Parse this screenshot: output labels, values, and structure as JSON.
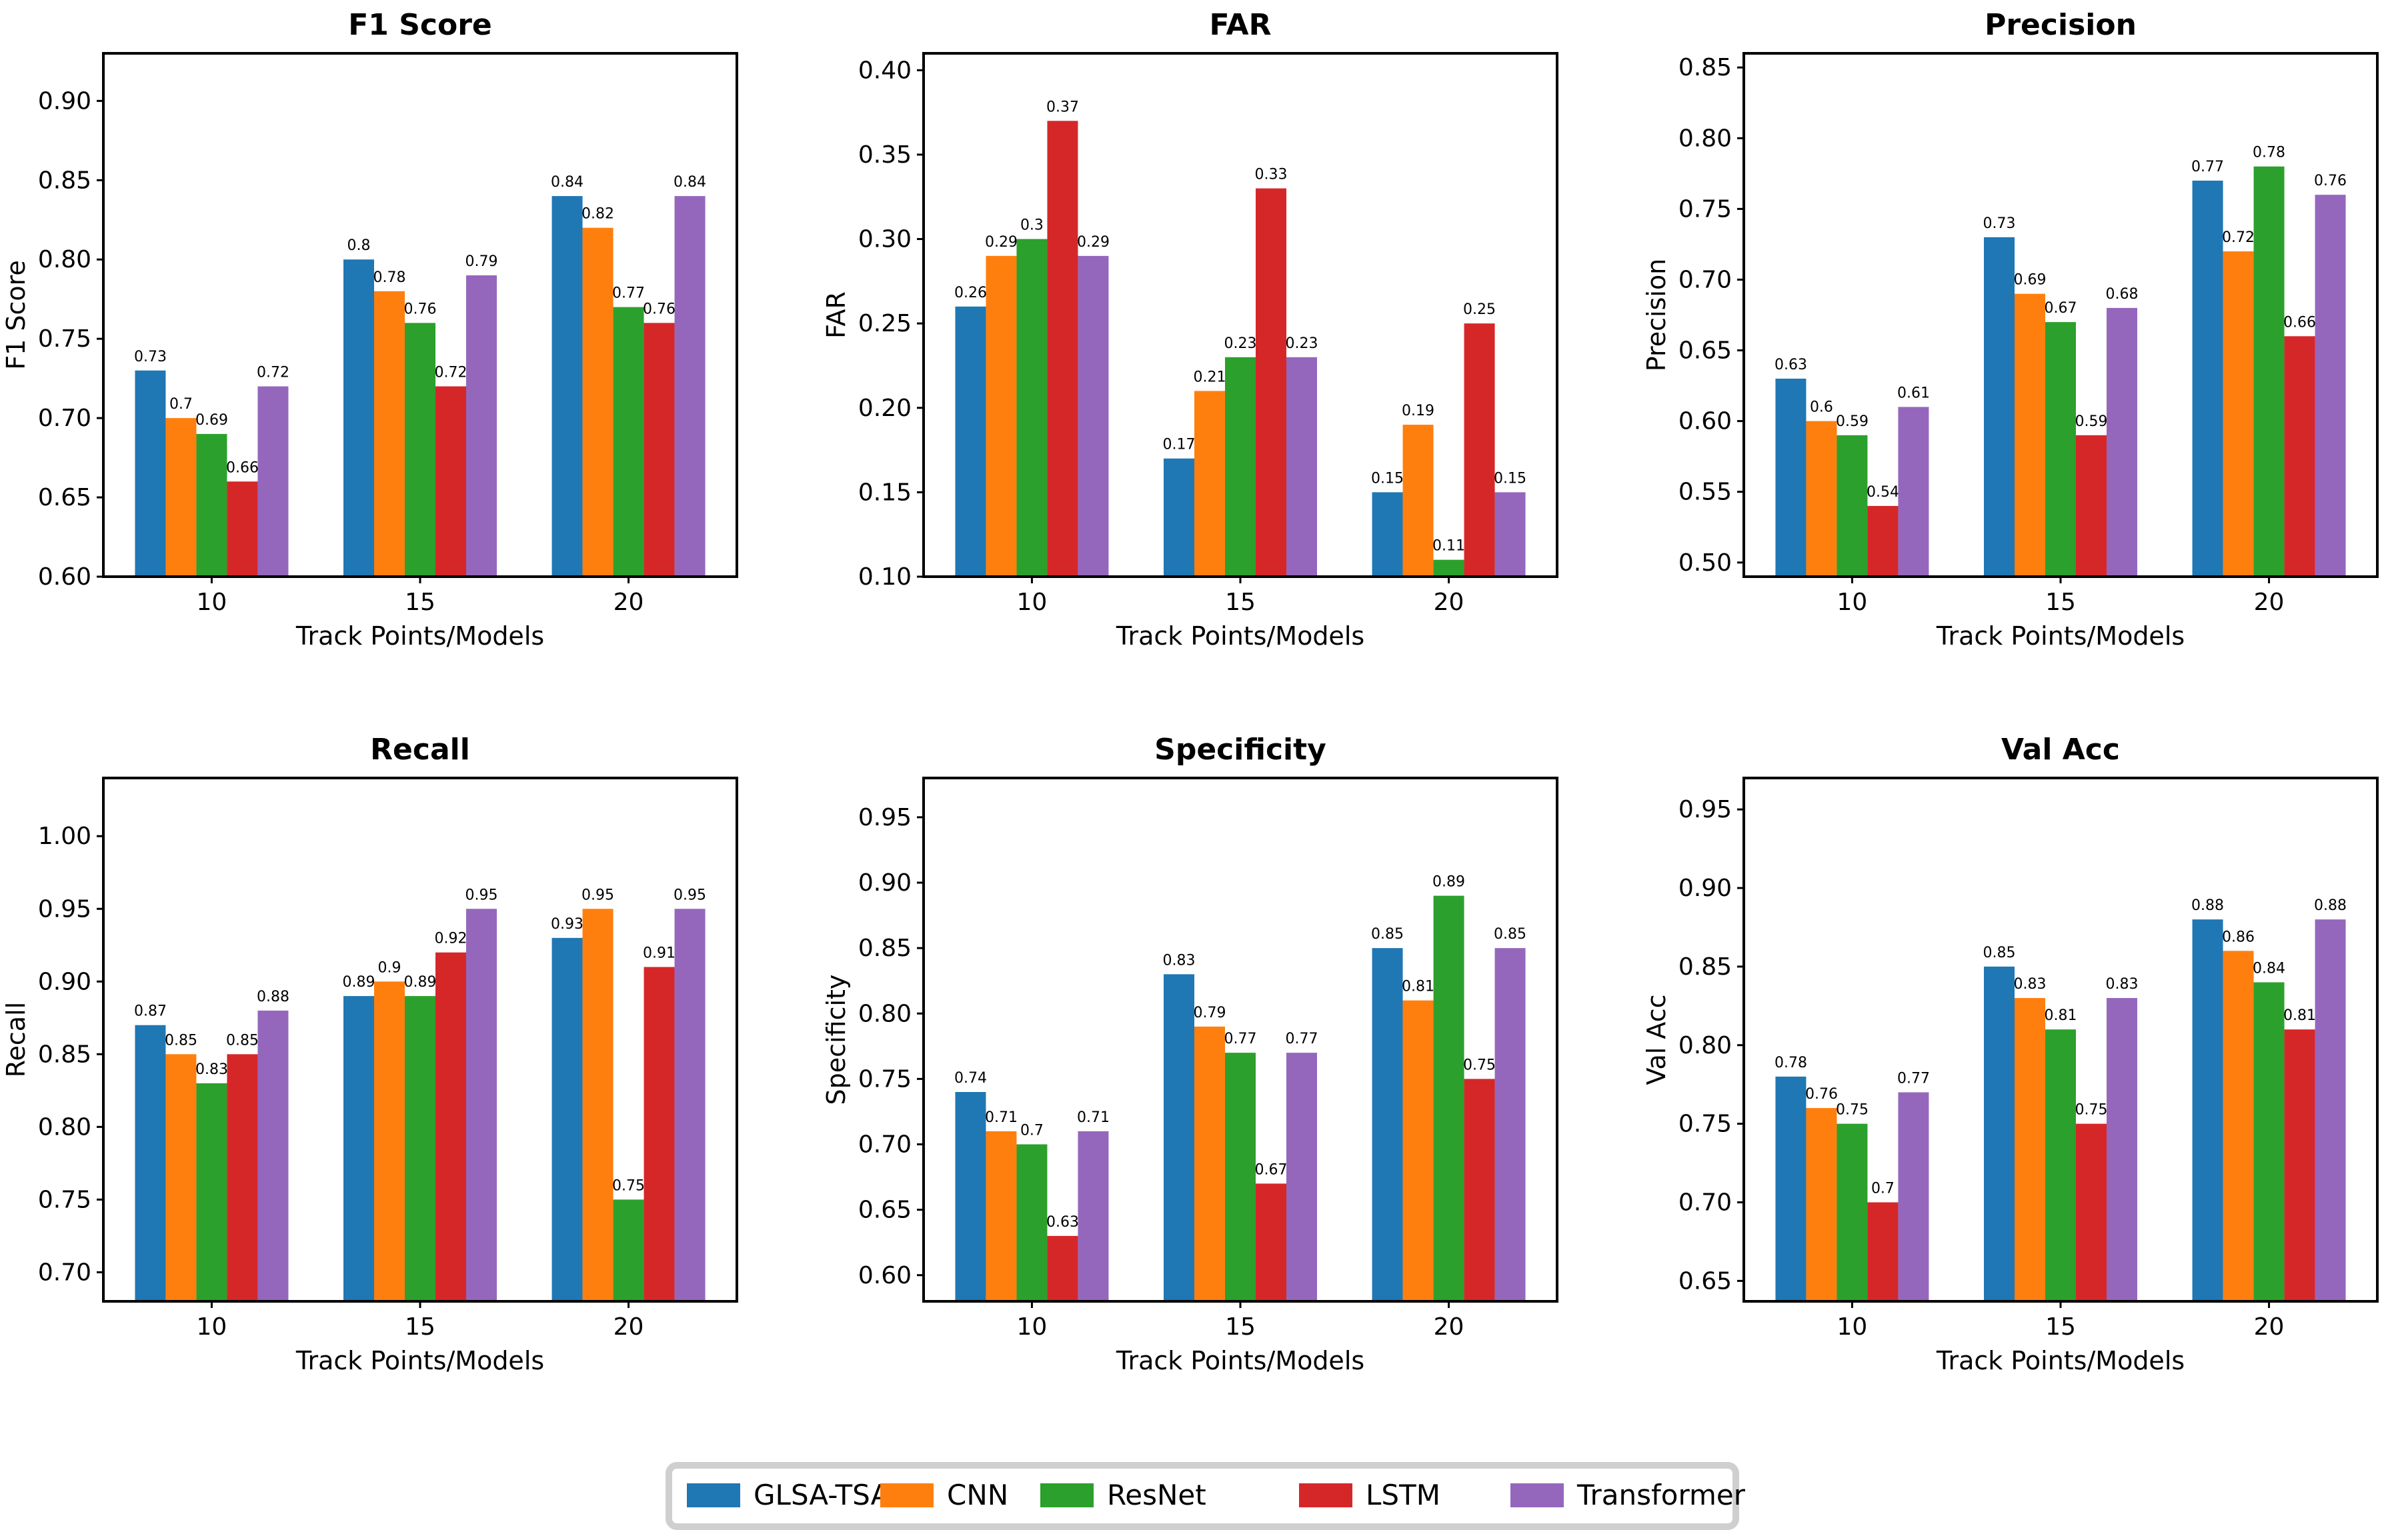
{
  "models": [
    "GLSA-TSA",
    "CNN",
    "ResNet",
    "LSTM",
    "Transformer"
  ],
  "colors": {
    "GLSA-TSA": "#1f77b4",
    "CNN": "#ff7f0e",
    "ResNet": "#2ca02c",
    "LSTM": "#d62728",
    "Transformer": "#9467bd"
  },
  "chart_data": [
    {
      "type": "bar",
      "title": "F1 Score",
      "xlabel": "Track Points/Models",
      "ylabel": "F1 Score",
      "categories": [
        "10",
        "15",
        "20"
      ],
      "ylim": [
        0.6,
        0.93
      ],
      "yticks": [
        0.6,
        0.65,
        0.7,
        0.75,
        0.8,
        0.85,
        0.9
      ],
      "series": [
        {
          "name": "GLSA-TSA",
          "values": [
            0.73,
            0.8,
            0.84
          ],
          "labels": [
            "0.73",
            "0.8",
            "0.84"
          ]
        },
        {
          "name": "CNN",
          "values": [
            0.7,
            0.78,
            0.82
          ],
          "labels": [
            "0.7",
            "0.78",
            "0.82"
          ]
        },
        {
          "name": "ResNet",
          "values": [
            0.69,
            0.76,
            0.77
          ],
          "labels": [
            "0.69",
            "0.76",
            "0.77"
          ]
        },
        {
          "name": "LSTM",
          "values": [
            0.66,
            0.72,
            0.76
          ],
          "labels": [
            "0.66",
            "0.72",
            "0.76"
          ]
        },
        {
          "name": "Transformer",
          "values": [
            0.72,
            0.79,
            0.84
          ],
          "labels": [
            "0.72",
            "0.79",
            "0.84"
          ]
        }
      ]
    },
    {
      "type": "bar",
      "title": "FAR",
      "xlabel": "Track Points/Models",
      "ylabel": "FAR",
      "categories": [
        "10",
        "15",
        "20"
      ],
      "ylim": [
        0.1,
        0.41
      ],
      "yticks": [
        0.1,
        0.15,
        0.2,
        0.25,
        0.3,
        0.35,
        0.4
      ],
      "series": [
        {
          "name": "GLSA-TSA",
          "values": [
            0.26,
            0.17,
            0.15
          ],
          "labels": [
            "0.26",
            "0.17",
            "0.15"
          ]
        },
        {
          "name": "CNN",
          "values": [
            0.29,
            0.21,
            0.19
          ],
          "labels": [
            "0.29",
            "0.21",
            "0.19"
          ]
        },
        {
          "name": "ResNet",
          "values": [
            0.3,
            0.23,
            0.11
          ],
          "labels": [
            "0.3",
            "0.23",
            "0.11"
          ]
        },
        {
          "name": "LSTM",
          "values": [
            0.37,
            0.33,
            0.25
          ],
          "labels": [
            "0.37",
            "0.33",
            "0.25"
          ]
        },
        {
          "name": "Transformer",
          "values": [
            0.29,
            0.23,
            0.15
          ],
          "labels": [
            "0.29",
            "0.23",
            "0.15"
          ]
        }
      ]
    },
    {
      "type": "bar",
      "title": "Precision",
      "xlabel": "Track Points/Models",
      "ylabel": "Precision",
      "categories": [
        "10",
        "15",
        "20"
      ],
      "ylim": [
        0.49,
        0.86
      ],
      "yticks": [
        0.5,
        0.55,
        0.6,
        0.65,
        0.7,
        0.75,
        0.8,
        0.85
      ],
      "series": [
        {
          "name": "GLSA-TSA",
          "values": [
            0.63,
            0.73,
            0.77
          ],
          "labels": [
            "0.63",
            "0.73",
            "0.77"
          ]
        },
        {
          "name": "CNN",
          "values": [
            0.6,
            0.69,
            0.72
          ],
          "labels": [
            "0.6",
            "0.69",
            "0.72"
          ]
        },
        {
          "name": "ResNet",
          "values": [
            0.59,
            0.67,
            0.78
          ],
          "labels": [
            "0.59",
            "0.67",
            "0.78"
          ]
        },
        {
          "name": "LSTM",
          "values": [
            0.54,
            0.59,
            0.66
          ],
          "labels": [
            "0.54",
            "0.59",
            "0.66"
          ]
        },
        {
          "name": "Transformer",
          "values": [
            0.61,
            0.68,
            0.76
          ],
          "labels": [
            "0.61",
            "0.68",
            "0.76"
          ]
        }
      ]
    },
    {
      "type": "bar",
      "title": "Recall",
      "xlabel": "Track Points/Models",
      "ylabel": "Recall",
      "categories": [
        "10",
        "15",
        "20"
      ],
      "ylim": [
        0.68,
        1.04
      ],
      "yticks": [
        0.7,
        0.75,
        0.8,
        0.85,
        0.9,
        0.95,
        1.0
      ],
      "series": [
        {
          "name": "GLSA-TSA",
          "values": [
            0.87,
            0.89,
            0.93
          ],
          "labels": [
            "0.87",
            "0.89",
            "0.93"
          ]
        },
        {
          "name": "CNN",
          "values": [
            0.85,
            0.9,
            0.95
          ],
          "labels": [
            "0.85",
            "0.9",
            "0.95"
          ]
        },
        {
          "name": "ResNet",
          "values": [
            0.83,
            0.89,
            0.75
          ],
          "labels": [
            "0.83",
            "0.89",
            "0.75"
          ]
        },
        {
          "name": "LSTM",
          "values": [
            0.85,
            0.92,
            0.91
          ],
          "labels": [
            "0.85",
            "0.92",
            "0.91"
          ]
        },
        {
          "name": "Transformer",
          "values": [
            0.88,
            0.95,
            0.95
          ],
          "labels": [
            "0.88",
            "0.95",
            "0.95"
          ]
        }
      ]
    },
    {
      "type": "bar",
      "title": "Specificity",
      "xlabel": "Track Points/Models",
      "ylabel": "Specificity",
      "categories": [
        "10",
        "15",
        "20"
      ],
      "ylim": [
        0.58,
        0.98
      ],
      "yticks": [
        0.6,
        0.65,
        0.7,
        0.75,
        0.8,
        0.85,
        0.9,
        0.95
      ],
      "series": [
        {
          "name": "GLSA-TSA",
          "values": [
            0.74,
            0.83,
            0.85
          ],
          "labels": [
            "0.74",
            "0.83",
            "0.85"
          ]
        },
        {
          "name": "CNN",
          "values": [
            0.71,
            0.79,
            0.81
          ],
          "labels": [
            "0.71",
            "0.79",
            "0.81"
          ]
        },
        {
          "name": "ResNet",
          "values": [
            0.7,
            0.77,
            0.89
          ],
          "labels": [
            "0.7",
            "0.77",
            "0.89"
          ]
        },
        {
          "name": "LSTM",
          "values": [
            0.63,
            0.67,
            0.75
          ],
          "labels": [
            "0.63",
            "0.67",
            "0.75"
          ]
        },
        {
          "name": "Transformer",
          "values": [
            0.71,
            0.77,
            0.85
          ],
          "labels": [
            "0.71",
            "0.77",
            "0.85"
          ]
        }
      ]
    },
    {
      "type": "bar",
      "title": "Val Acc",
      "xlabel": "Track Points/Models",
      "ylabel": "Val Acc",
      "categories": [
        "10",
        "15",
        "20"
      ],
      "ylim": [
        0.637,
        0.97
      ],
      "yticks": [
        0.65,
        0.7,
        0.75,
        0.8,
        0.85,
        0.9,
        0.95
      ],
      "series": [
        {
          "name": "GLSA-TSA",
          "values": [
            0.78,
            0.85,
            0.88
          ],
          "labels": [
            "0.78",
            "0.85",
            "0.88"
          ]
        },
        {
          "name": "CNN",
          "values": [
            0.76,
            0.83,
            0.86
          ],
          "labels": [
            "0.76",
            "0.83",
            "0.86"
          ]
        },
        {
          "name": "ResNet",
          "values": [
            0.75,
            0.81,
            0.84
          ],
          "labels": [
            "0.75",
            "0.81",
            "0.84"
          ]
        },
        {
          "name": "LSTM",
          "values": [
            0.7,
            0.75,
            0.81
          ],
          "labels": [
            "0.7",
            "0.75",
            "0.81"
          ]
        },
        {
          "name": "Transformer",
          "values": [
            0.77,
            0.83,
            0.88
          ],
          "labels": [
            "0.77",
            "0.83",
            "0.88"
          ]
        }
      ]
    }
  ]
}
